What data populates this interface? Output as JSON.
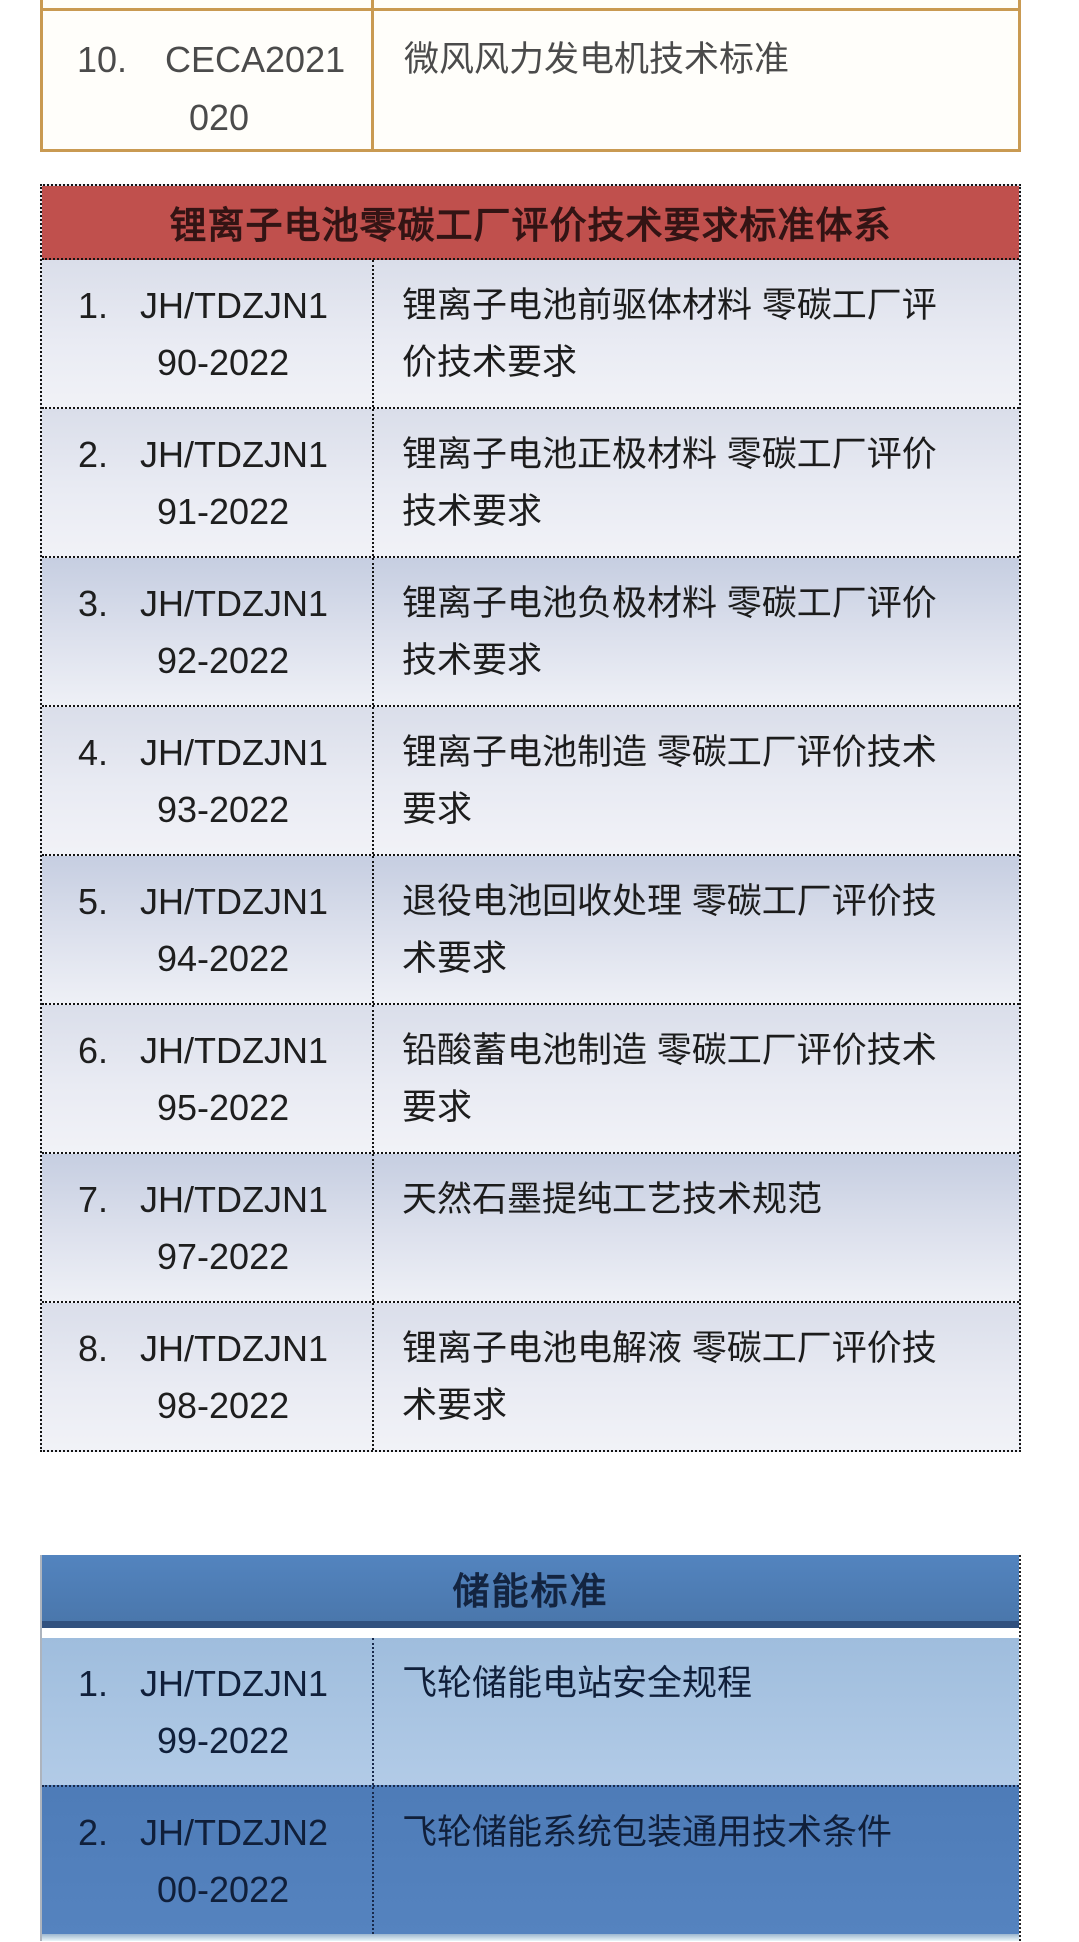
{
  "top_table": {
    "rows": [
      {
        "num": "10.",
        "code_line1": "CECA2021",
        "code_line2": "020",
        "title_lines": [
          "微风风力发电机技术标准"
        ]
      }
    ]
  },
  "lithium_table": {
    "header": "锂离子电池零碳工厂评价技术要求标准体系",
    "rows": [
      {
        "num": "1.",
        "code_line1": "JH/TDZJN1",
        "code_line2": "90-2022",
        "title_lines": [
          "锂离子电池前驱体材料 零碳工厂评",
          "价技术要求"
        ]
      },
      {
        "num": "2.",
        "code_line1": "JH/TDZJN1",
        "code_line2": "91-2022",
        "title_lines": [
          "锂离子电池正极材料 零碳工厂评价",
          "技术要求"
        ]
      },
      {
        "num": "3.",
        "code_line1": "JH/TDZJN1",
        "code_line2": "92-2022",
        "title_lines": [
          "锂离子电池负极材料 零碳工厂评价",
          "技术要求"
        ]
      },
      {
        "num": "4.",
        "code_line1": "JH/TDZJN1",
        "code_line2": "93-2022",
        "title_lines": [
          "锂离子电池制造 零碳工厂评价技术",
          "要求"
        ]
      },
      {
        "num": "5.",
        "code_line1": "JH/TDZJN1",
        "code_line2": "94-2022",
        "title_lines": [
          "退役电池回收处理 零碳工厂评价技",
          "术要求"
        ]
      },
      {
        "num": "6.",
        "code_line1": "JH/TDZJN1",
        "code_line2": "95-2022",
        "title_lines": [
          "铅酸蓄电池制造 零碳工厂评价技术",
          "要求"
        ]
      },
      {
        "num": "7.",
        "code_line1": "JH/TDZJN1",
        "code_line2": "97-2022",
        "title_lines": [
          "天然石墨提纯工艺技术规范"
        ]
      },
      {
        "num": "8.",
        "code_line1": "JH/TDZJN1",
        "code_line2": "98-2022",
        "title_lines": [
          "锂离子电池电解液 零碳工厂评价技",
          "术要求"
        ]
      }
    ]
  },
  "storage_table": {
    "header": "储能标准",
    "rows": [
      {
        "num": "1.",
        "code_line1": "JH/TDZJN1",
        "code_line2": "99-2022",
        "title_lines": [
          "飞轮储能电站安全规程"
        ]
      },
      {
        "num": "2.",
        "code_line1": "JH/TDZJN2",
        "code_line2": "00-2022",
        "title_lines": [
          "飞轮储能系统包装通用技术条件"
        ]
      }
    ]
  },
  "colors": {
    "orange_table_border": "#c99a52",
    "red_header_bg": "#c0504d",
    "red_header_text": "#331414",
    "lithium_row_light": "#e9ebf3",
    "lithium_row_dark": "#c6cee1",
    "dotted_border": "#141414",
    "blue_header_bg": "#4d7cb8",
    "blue_header_underline": "#31517f",
    "blue_row_light": "#a5c1e0",
    "blue_row_dark": "#517fbb",
    "blue_text": "#101f3a"
  }
}
